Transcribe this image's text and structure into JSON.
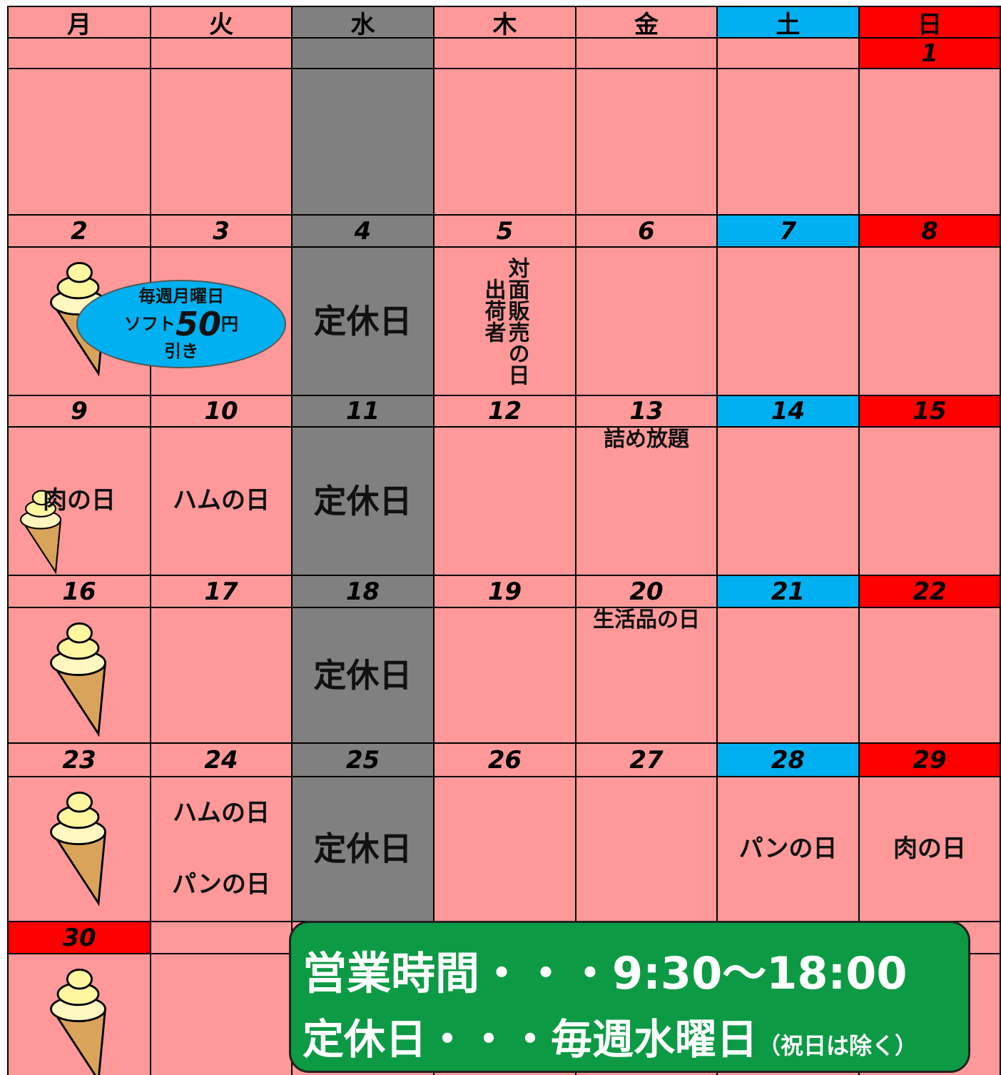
{
  "weekdays": [
    "月",
    "火",
    "水",
    "木",
    "金",
    "土",
    "日"
  ],
  "weeks": [
    [
      null,
      null,
      null,
      null,
      null,
      null,
      {
        "date": "1"
      }
    ],
    [
      {
        "date": "2",
        "notes": [
          "毎週月曜日",
          "ソフト",
          "50",
          "円",
          "引き"
        ]
      },
      {
        "date": "3"
      },
      {
        "date": "4",
        "notes": [
          "定休日"
        ]
      },
      {
        "date": "5",
        "notes": [
          "対面販売の日",
          "出荷者"
        ]
      },
      {
        "date": "6"
      },
      {
        "date": "7"
      },
      {
        "date": "8"
      }
    ],
    [
      {
        "date": "9",
        "notes": [
          "肉の日"
        ]
      },
      {
        "date": "10",
        "notes": [
          "ハムの日"
        ]
      },
      {
        "date": "11",
        "notes": [
          "定休日"
        ]
      },
      {
        "date": "12"
      },
      {
        "date": "13",
        "notes": [
          "詰め放題"
        ]
      },
      {
        "date": "14"
      },
      {
        "date": "15"
      }
    ],
    [
      {
        "date": "16"
      },
      {
        "date": "17"
      },
      {
        "date": "18",
        "notes": [
          "定休日"
        ]
      },
      {
        "date": "19"
      },
      {
        "date": "20",
        "notes": [
          "生活品の日"
        ]
      },
      {
        "date": "21"
      },
      {
        "date": "22"
      }
    ],
    [
      {
        "date": "23"
      },
      {
        "date": "24",
        "notes": [
          "ハムの日",
          "パンの日"
        ]
      },
      {
        "date": "25",
        "notes": [
          "定休日"
        ]
      },
      {
        "date": "26"
      },
      {
        "date": "27"
      },
      {
        "date": "28",
        "notes": [
          "パンの日"
        ]
      },
      {
        "date": "29",
        "notes": [
          "肉の日"
        ]
      }
    ],
    [
      {
        "date": "30",
        "holiday": true
      },
      null,
      null,
      null,
      null,
      null,
      null
    ]
  ],
  "footer": {
    "hours": "営業時間・・・9:30〜18:00",
    "closed": "定休日・・・毎週水曜日",
    "closed_note": "（祝日は除く）"
  }
}
